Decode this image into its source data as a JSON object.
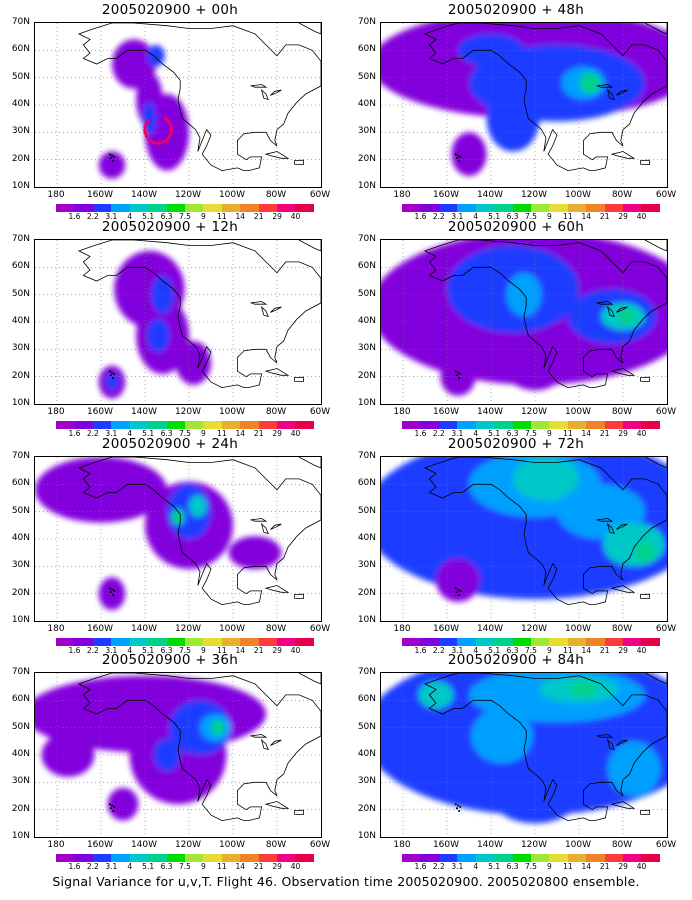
{
  "caption": "Signal Variance for u,v,T. Flight 46. Observation time 2005020900. 2005020800 ensemble.",
  "chart_data": {
    "type": "heatmap",
    "y_ticks": [
      "70N",
      "60N",
      "50N",
      "40N",
      "30N",
      "20N",
      "10N"
    ],
    "x_ticks": [
      "180",
      "160W",
      "140W",
      "120W",
      "100W",
      "80W",
      "60W"
    ],
    "lon_range": [
      170,
      300
    ],
    "lat_range": [
      10,
      70
    ],
    "colorbar": {
      "labels": [
        "1.6",
        "2.2",
        "3.1",
        "4",
        "5.1",
        "6.3",
        "7.5",
        "9",
        "11",
        "14",
        "21",
        "29",
        "40"
      ],
      "colors": [
        "#a000c8",
        "#8200dc",
        "#1e3cff",
        "#00a0ff",
        "#00c8c8",
        "#00d28c",
        "#00dc00",
        "#a0e632",
        "#e6dc32",
        "#e6af2d",
        "#f08228",
        "#fa3c3c",
        "#f00082"
      ]
    },
    "panels": [
      {
        "title": "2005020900 + 00h",
        "hour": 0,
        "blobs": [
          [
            215,
            55,
            10,
            9,
            1
          ],
          [
            222,
            42,
            6,
            10,
            1
          ],
          [
            230,
            30,
            10,
            14,
            1
          ],
          [
            205,
            18,
            6,
            5,
            1
          ],
          [
            225,
            58,
            4,
            4,
            2
          ],
          [
            222,
            35,
            3,
            6,
            2
          ]
        ]
      },
      {
        "title": "2005020900 + 12h",
        "hour": 12,
        "blobs": [
          [
            222,
            52,
            16,
            14,
            1
          ],
          [
            228,
            35,
            12,
            14,
            1
          ],
          [
            242,
            25,
            8,
            8,
            1
          ],
          [
            205,
            18,
            6,
            6,
            1
          ],
          [
            228,
            50,
            5,
            7,
            2
          ],
          [
            226,
            35,
            5,
            6,
            2
          ],
          [
            205,
            18,
            3,
            3,
            2
          ]
        ]
      },
      {
        "title": "2005020900 + 24h",
        "hour": 24,
        "blobs": [
          [
            200,
            58,
            30,
            12,
            1
          ],
          [
            240,
            45,
            20,
            16,
            1
          ],
          [
            270,
            35,
            12,
            6,
            1
          ],
          [
            205,
            20,
            6,
            6,
            1
          ],
          [
            240,
            50,
            10,
            10,
            2
          ],
          [
            244,
            52,
            4,
            4,
            4
          ],
          [
            235,
            48,
            3,
            3,
            5
          ]
        ]
      },
      {
        "title": "2005020900 + 36h",
        "hour": 36,
        "blobs": [
          [
            220,
            55,
            55,
            14,
            1
          ],
          [
            235,
            40,
            22,
            18,
            1
          ],
          [
            210,
            22,
            7,
            6,
            1
          ],
          [
            185,
            40,
            12,
            8,
            1
          ],
          [
            245,
            50,
            14,
            10,
            2
          ],
          [
            252,
            50,
            7,
            5,
            3
          ],
          [
            253,
            50,
            3,
            3,
            5
          ],
          [
            230,
            40,
            6,
            6,
            2
          ]
        ]
      },
      {
        "title": "2005020900 + 48h",
        "hour": 48,
        "blobs": [
          [
            240,
            55,
            75,
            20,
            1
          ],
          [
            250,
            48,
            40,
            14,
            2
          ],
          [
            262,
            48,
            10,
            6,
            3
          ],
          [
            265,
            48,
            5,
            4,
            5
          ],
          [
            230,
            35,
            12,
            12,
            2
          ],
          [
            210,
            22,
            8,
            8,
            1
          ],
          [
            220,
            60,
            15,
            6,
            2
          ]
        ]
      },
      {
        "title": "2005020900 + 60h",
        "hour": 60,
        "blobs": [
          [
            240,
            45,
            75,
            28,
            1
          ],
          [
            230,
            52,
            30,
            16,
            2
          ],
          [
            275,
            42,
            20,
            10,
            2
          ],
          [
            235,
            50,
            8,
            8,
            3
          ],
          [
            280,
            42,
            10,
            5,
            4
          ],
          [
            282,
            42,
            4,
            3,
            5
          ],
          [
            240,
            25,
            15,
            10,
            1
          ],
          [
            205,
            20,
            8,
            7,
            1
          ]
        ]
      },
      {
        "title": "2005020900 + 72h",
        "hour": 72,
        "blobs": [
          [
            240,
            48,
            78,
            30,
            2
          ],
          [
            240,
            60,
            30,
            12,
            3
          ],
          [
            245,
            62,
            15,
            8,
            4
          ],
          [
            270,
            50,
            20,
            10,
            3
          ],
          [
            285,
            38,
            14,
            8,
            4
          ],
          [
            290,
            35,
            5,
            4,
            5
          ],
          [
            205,
            25,
            10,
            8,
            1
          ]
        ]
      },
      {
        "title": "2005020900 + 84h",
        "hour": 84,
        "blobs": [
          [
            240,
            48,
            78,
            30,
            2
          ],
          [
            250,
            62,
            40,
            10,
            3
          ],
          [
            260,
            64,
            18,
            5,
            4
          ],
          [
            262,
            64,
            6,
            3,
            5
          ],
          [
            285,
            35,
            12,
            10,
            3
          ],
          [
            225,
            47,
            14,
            10,
            3
          ],
          [
            195,
            62,
            8,
            5,
            4
          ],
          [
            240,
            25,
            20,
            10,
            2
          ]
        ]
      }
    ]
  }
}
